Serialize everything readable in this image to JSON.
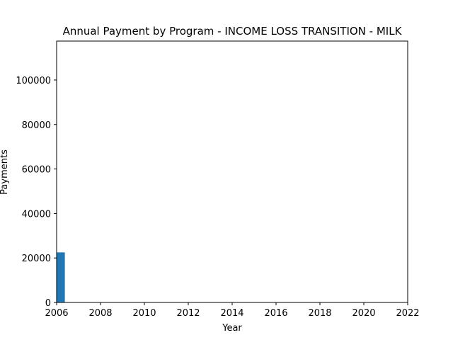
{
  "chart_data": {
    "type": "bar",
    "title": "Annual Payment by Program - INCOME LOSS TRANSITION - MILK",
    "xlabel": "Year",
    "ylabel": "Payments",
    "xlim": [
      2006,
      2022
    ],
    "ylim": [
      0,
      117500
    ],
    "x_ticks": [
      "2006",
      "2008",
      "2010",
      "2012",
      "2014",
      "2016",
      "2018",
      "2020",
      "2022"
    ],
    "y_ticks": [
      "0",
      "20000",
      "40000",
      "60000",
      "80000",
      "100000"
    ],
    "grid": false,
    "legend": "none",
    "bar_color": "#1f77b4",
    "bars": [
      {
        "x": 2006,
        "value": 22500
      }
    ]
  }
}
